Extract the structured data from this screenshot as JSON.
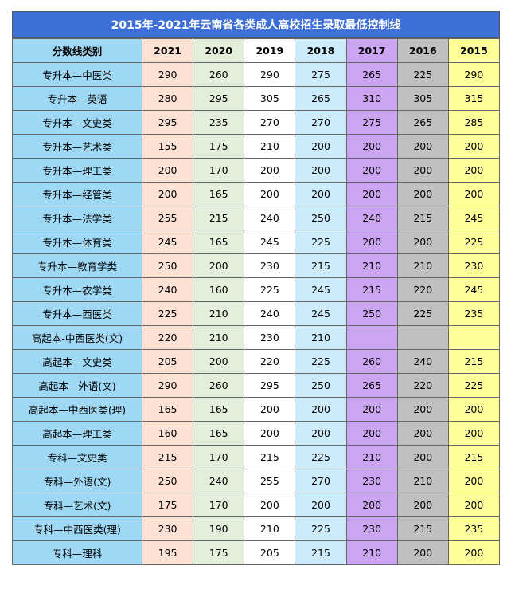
{
  "title": "2015年-2021年云南省各类成人高校招生录取最低控制线",
  "table": {
    "header": [
      "分数线类别",
      "2021",
      "2020",
      "2019",
      "2018",
      "2017",
      "2016",
      "2015"
    ],
    "rows": [
      [
        "专升本—中医类",
        290,
        260,
        290,
        275,
        265,
        225,
        290
      ],
      [
        "专升本—英语",
        280,
        295,
        305,
        265,
        310,
        305,
        315
      ],
      [
        "专升本—文史类",
        295,
        235,
        270,
        270,
        275,
        265,
        285
      ],
      [
        "专升本—艺术类",
        155,
        175,
        210,
        200,
        200,
        200,
        200
      ],
      [
        "专升本—理工类",
        200,
        170,
        200,
        200,
        200,
        200,
        200
      ],
      [
        "专升本—经管类",
        200,
        165,
        200,
        200,
        200,
        200,
        200
      ],
      [
        "专升本—法学类",
        255,
        215,
        240,
        250,
        240,
        215,
        245
      ],
      [
        "专升本—体育类",
        245,
        165,
        245,
        225,
        200,
        200,
        225
      ],
      [
        "专升本—教育学类",
        250,
        200,
        230,
        215,
        210,
        210,
        230
      ],
      [
        "专升本—农学类",
        240,
        160,
        225,
        245,
        215,
        220,
        245
      ],
      [
        "专升本—西医类",
        225,
        210,
        240,
        245,
        250,
        225,
        235
      ],
      [
        "高起本-中西医类(文)",
        220,
        210,
        230,
        210,
        null,
        null,
        null
      ],
      [
        "高起本—文史类",
        205,
        200,
        220,
        225,
        260,
        240,
        215
      ],
      [
        "高起本—外语(文)",
        290,
        260,
        295,
        250,
        265,
        220,
        225
      ],
      [
        "高起本—中西医类(理)",
        165,
        165,
        200,
        200,
        200,
        200,
        200
      ],
      [
        "高起本—理工类",
        160,
        165,
        200,
        200,
        200,
        200,
        200
      ],
      [
        "专科—文史类",
        215,
        170,
        215,
        225,
        210,
        200,
        215
      ],
      [
        "专科—外语(文)",
        250,
        240,
        255,
        270,
        230,
        210,
        200
      ],
      [
        "专科—艺术(文)",
        175,
        170,
        200,
        200,
        200,
        200,
        200
      ],
      [
        "专科—中西医类(理)",
        230,
        190,
        210,
        225,
        230,
        215,
        235
      ],
      [
        "专科—理科",
        195,
        175,
        205,
        215,
        210,
        200,
        200
      ]
    ]
  }
}
